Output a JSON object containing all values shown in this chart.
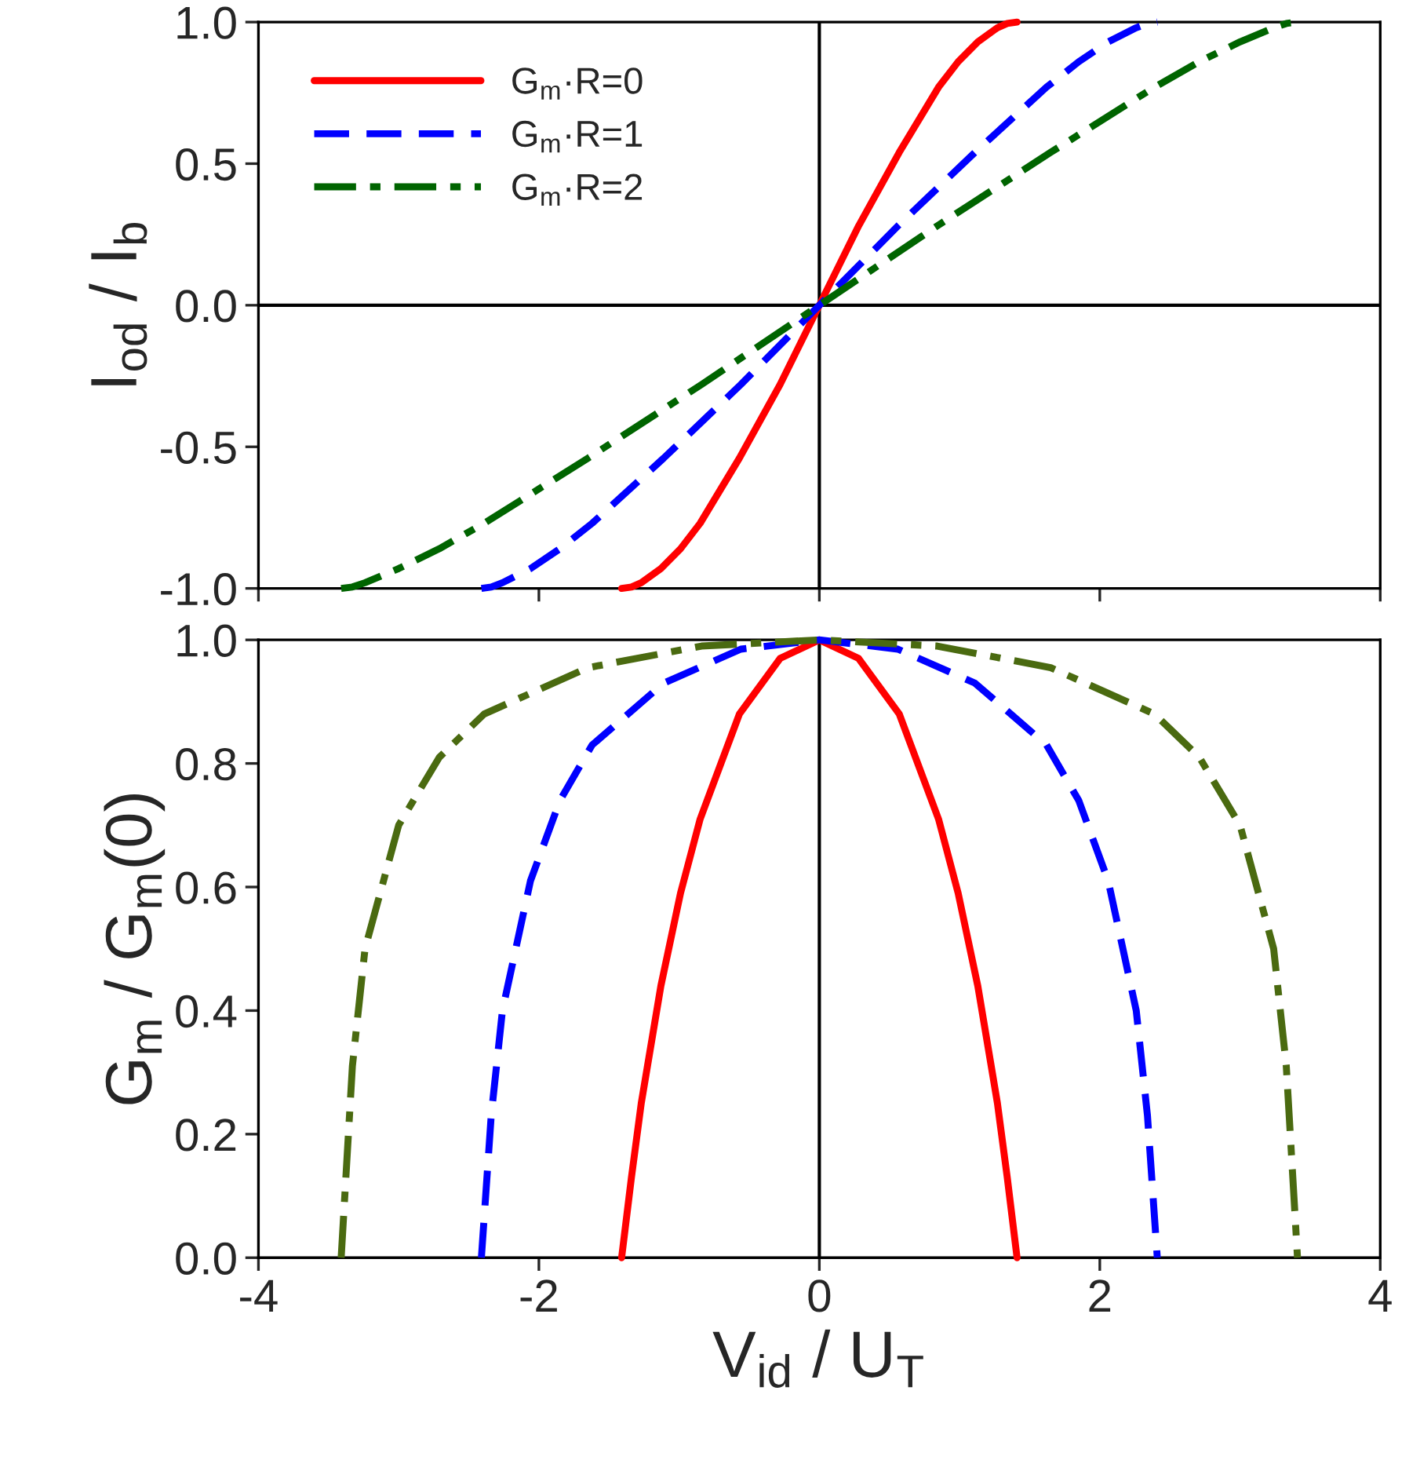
{
  "chart_data": [
    {
      "type": "line",
      "ylabel": "I$_{od}$ / I$_{b}$",
      "xlim": [
        -4,
        4
      ],
      "ylim": [
        -1,
        1
      ],
      "xticks": [
        -4,
        -2,
        0,
        2,
        4
      ],
      "yticks": [
        {
          "value": -1,
          "label": "-1.0"
        },
        {
          "value": -0.5,
          "label": "-0.5"
        },
        {
          "value": 0,
          "label": "0.0"
        },
        {
          "value": 0.5,
          "label": "0.5"
        },
        {
          "value": 1,
          "label": "1.0"
        }
      ],
      "tick_labels": "y",
      "grid": false,
      "legend": "top left",
      "ref_lines": [
        {
          "axis": "x",
          "value": 0,
          "color": "#000000"
        },
        {
          "axis": "y",
          "value": 0,
          "color": "#000000"
        }
      ],
      "series": [
        {
          "name": "G$_{m}$·R=0",
          "color": "#ff0000",
          "line_style": "solid",
          "x": [
            -1.41,
            -1.34,
            -1.27,
            -1.13,
            -0.99,
            -0.85,
            -0.57,
            -0.28,
            0,
            0.28,
            0.57,
            0.85,
            0.99,
            1.13,
            1.27,
            1.34,
            1.41
          ],
          "values": [
            -1,
            -0.995,
            -0.98,
            -0.93,
            -0.86,
            -0.77,
            -0.54,
            -0.28,
            0,
            0.28,
            0.54,
            0.77,
            0.86,
            0.93,
            0.98,
            0.995,
            1
          ]
        },
        {
          "name": "G$_{m}$·R=1",
          "color": "#0000ff",
          "line_style": "dashed",
          "x": [
            -2.41,
            -2.34,
            -2.26,
            -2.06,
            -1.85,
            -1.62,
            -1.11,
            -0.56,
            0,
            0.56,
            1.11,
            1.62,
            1.85,
            2.06,
            2.26,
            2.34,
            2.41
          ],
          "values": [
            -1,
            -0.995,
            -0.98,
            -0.93,
            -0.86,
            -0.77,
            -0.54,
            -0.28,
            0,
            0.28,
            0.54,
            0.77,
            0.86,
            0.93,
            0.98,
            0.995,
            1
          ]
        },
        {
          "name": "G$_{m}$·R=2",
          "color": "#006400",
          "line_style": "dashdot",
          "x": [
            -3.41,
            -3.33,
            -3.24,
            -3.0,
            -2.71,
            -2.39,
            -1.65,
            -0.84,
            0,
            0.84,
            1.65,
            2.39,
            2.71,
            3.0,
            3.24,
            3.33,
            3.41
          ],
          "values": [
            -1,
            -0.995,
            -0.98,
            -0.93,
            -0.86,
            -0.77,
            -0.54,
            -0.28,
            0,
            0.28,
            0.54,
            0.77,
            0.86,
            0.93,
            0.98,
            0.995,
            1
          ]
        }
      ]
    },
    {
      "type": "line",
      "xlabel": "V$_{id}$ / U$_{T}$",
      "ylabel": "G$_{m}$ / G$_{m}$(0)",
      "xlim": [
        -4,
        4
      ],
      "ylim": [
        0,
        1
      ],
      "xticks": [
        {
          "value": -4,
          "label": "-4"
        },
        {
          "value": -2,
          "label": "-2"
        },
        {
          "value": 0,
          "label": "0"
        },
        {
          "value": 2,
          "label": "2"
        },
        {
          "value": 4,
          "label": "4"
        }
      ],
      "yticks": [
        {
          "value": 0,
          "label": "0.0"
        },
        {
          "value": 0.2,
          "label": "0.2"
        },
        {
          "value": 0.4,
          "label": "0.4"
        },
        {
          "value": 0.6,
          "label": "0.6"
        },
        {
          "value": 0.8,
          "label": "0.8"
        },
        {
          "value": 1,
          "label": "1.0"
        }
      ],
      "grid": false,
      "ref_lines": [
        {
          "axis": "x",
          "value": 0,
          "color": "#000000"
        }
      ],
      "series": [
        {
          "color": "#ff0000",
          "line_style": "solid",
          "x": [
            -1.41,
            -1.34,
            -1.27,
            -1.13,
            -0.99,
            -0.85,
            -0.57,
            -0.28,
            0,
            0.28,
            0.57,
            0.85,
            0.99,
            1.13,
            1.27,
            1.34,
            1.41
          ],
          "values": [
            0,
            0.13,
            0.25,
            0.44,
            0.59,
            0.71,
            0.88,
            0.97,
            1,
            0.97,
            0.88,
            0.71,
            0.59,
            0.44,
            0.25,
            0.13,
            0
          ]
        },
        {
          "color": "#0000ff",
          "line_style": "dashed",
          "x": [
            -2.41,
            -2.34,
            -2.26,
            -2.06,
            -1.85,
            -1.62,
            -1.11,
            -0.56,
            0,
            0.56,
            1.11,
            1.62,
            1.85,
            2.06,
            2.26,
            2.34,
            2.41
          ],
          "values": [
            0,
            0.23,
            0.4,
            0.61,
            0.74,
            0.83,
            0.93,
            0.985,
            1,
            0.985,
            0.93,
            0.83,
            0.74,
            0.61,
            0.4,
            0.23,
            0
          ]
        },
        {
          "color": "#4a6a10",
          "line_style": "dashdot",
          "x": [
            -3.41,
            -3.33,
            -3.24,
            -3.0,
            -2.71,
            -2.39,
            -1.65,
            -0.84,
            0,
            0.84,
            1.65,
            2.39,
            2.71,
            3.0,
            3.24,
            3.33,
            3.41
          ],
          "values": [
            0,
            0.31,
            0.5,
            0.7,
            0.81,
            0.88,
            0.955,
            0.99,
            1,
            0.99,
            0.955,
            0.88,
            0.81,
            0.7,
            0.5,
            0.31,
            0
          ]
        }
      ]
    }
  ]
}
